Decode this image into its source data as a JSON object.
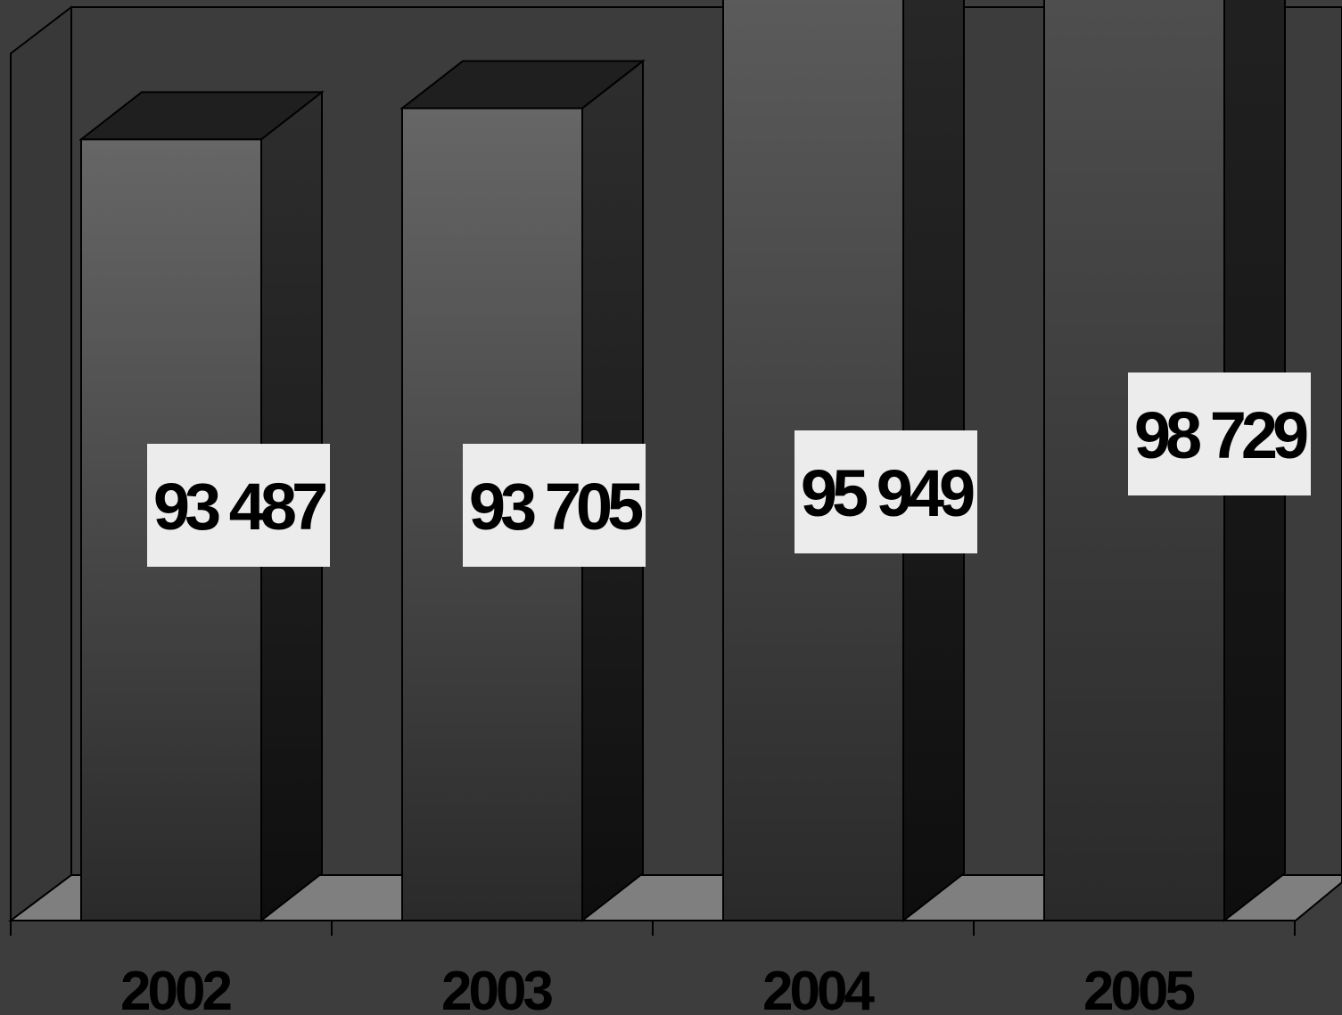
{
  "chart_data": {
    "type": "bar",
    "style": "3d-column",
    "categories": [
      "2002",
      "2003",
      "2004",
      "2005"
    ],
    "values": [
      93487,
      93705,
      95949,
      98729
    ],
    "data_labels": [
      "93 487",
      "93 705",
      "95 949",
      "98 729"
    ],
    "title": "",
    "xlabel": "",
    "ylabel": "",
    "ylim": [
      0,
      100000
    ],
    "grid": false,
    "legend": "none"
  },
  "colors": {
    "background": "#3d3d3d",
    "back_wall": "#3c3c3c",
    "side_wall": "#383838",
    "floor": "#7f7f7f",
    "bar_front_top": "#666666",
    "bar_front_bottom": "#2a2a2a",
    "bar_side_top": "#2e2e2e",
    "bar_side_bottom": "#0e0e0e",
    "bar_top": "#1f1f1f",
    "label_box": "#ececec",
    "label_text": "#000000",
    "outline": "#000000"
  }
}
